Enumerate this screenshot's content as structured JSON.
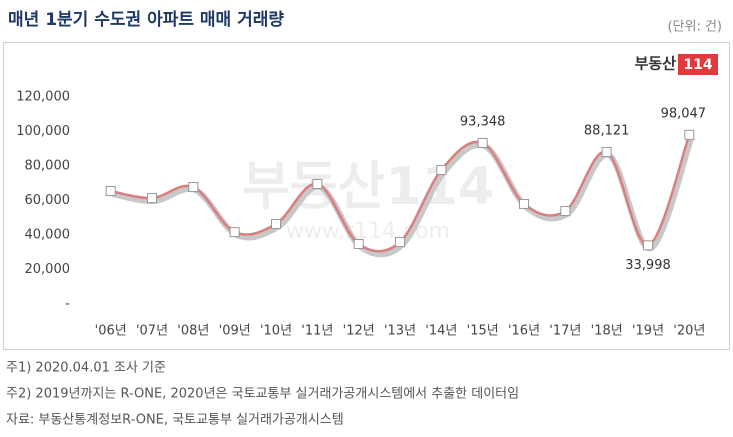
{
  "chart_data": {
    "type": "line",
    "title": "매년 1분기 수도권 아파트 매매 거래량",
    "unit_note": "(단위: 건)",
    "logo": {
      "text": "부동산",
      "badge": "114"
    },
    "watermark": "부동산114",
    "watermark_url": "www.r114.com",
    "categories": [
      "'06년",
      "'07년",
      "'08년",
      "'09년",
      "'10년",
      "'11년",
      "'12년",
      "'13년",
      "'14년",
      "'15년",
      "'16년",
      "'17년",
      "'18년",
      "'19년",
      "'20년"
    ],
    "series": [
      {
        "name": "매매 거래량",
        "color": "#d9807f",
        "values": [
          65500,
          61400,
          67800,
          41700,
          46400,
          69600,
          34800,
          35900,
          77700,
          93348,
          58000,
          53900,
          88121,
          33998,
          98047
        ],
        "value_labels": [
          null,
          null,
          null,
          null,
          null,
          null,
          null,
          null,
          null,
          "93,348",
          null,
          null,
          "88,121",
          "33,998",
          "98,047"
        ]
      }
    ],
    "ylim": [
      0,
      120000
    ],
    "yticks": [
      {
        "value": 0,
        "label": "-"
      },
      {
        "value": 20000,
        "label": "20,000"
      },
      {
        "value": 40000,
        "label": "40,000"
      },
      {
        "value": 60000,
        "label": "60,000"
      },
      {
        "value": 80000,
        "label": "80,000"
      },
      {
        "value": 100000,
        "label": "100,000"
      },
      {
        "value": 120000,
        "label": "120,000"
      }
    ],
    "grid": false,
    "notes": [
      "주1) 2020.04.01  조사 기준",
      "주2) 2019년까지는 R-ONE, 2020년은  국토교통부 실거래가공개시스템에서 추출한 데이터임",
      "자료: 부동산통계정보R-ONE, 국토교통부 실거래가공개시스템"
    ]
  }
}
